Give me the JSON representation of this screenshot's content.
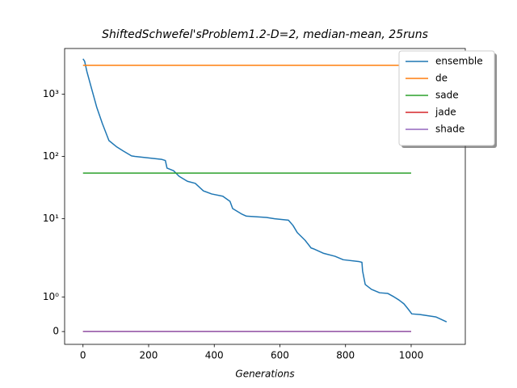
{
  "chart_data": {
    "type": "line",
    "title": "ShiftedSchwefel'sProblem1.2-D=2, median-mean, 25runs",
    "x_label": "Generations",
    "yscale": "symlog",
    "xlim": [
      -56,
      1165
    ],
    "ylim": [
      -0.37,
      5400
    ],
    "xticks": [
      0,
      200,
      400,
      600,
      800,
      1000
    ],
    "yticks": [
      0,
      {
        "value": 1,
        "label": "10⁰"
      },
      {
        "value": 10,
        "label": "10¹"
      },
      {
        "value": 100,
        "label": "10²"
      },
      {
        "value": 1000,
        "label": "10³"
      }
    ],
    "legend": "upper right",
    "series": [
      {
        "name": "ensemble",
        "color": "#1f77b4",
        "x": [
          0,
          5,
          12,
          25,
          42,
          59,
          79,
          103,
          123,
          148,
          158,
          239,
          251,
          256,
          276,
          293,
          318,
          342,
          367,
          392,
          426,
          448,
          456,
          485,
          498,
          559,
          584,
          626,
          640,
          653,
          677,
          695,
          702,
          732,
          768,
          793,
          842,
          850,
          852,
          860,
          879,
          904,
          929,
          948,
          963,
          978,
          990,
          1002,
          1027,
          1076,
          1108
        ],
        "values": [
          3690,
          3370,
          2290,
          1290,
          612,
          337,
          180,
          142,
          122,
          102,
          100,
          90,
          86,
          65,
          59,
          48,
          40,
          37,
          28,
          25,
          23,
          19,
          14.6,
          11.8,
          11,
          10.5,
          10,
          9.5,
          7.8,
          6.0,
          4.5,
          3.4,
          3.3,
          2.8,
          2.5,
          2.2,
          2.05,
          2.0,
          1.75,
          1.36,
          1.22,
          1.12,
          1.1,
          1.0,
          0.91,
          0.8,
          0.66,
          0.51,
          0.49,
          0.42,
          0.28
        ]
      },
      {
        "name": "de",
        "color": "#ff7f0e",
        "x": [
          0,
          1000
        ],
        "values": [
          2900,
          2900
        ]
      },
      {
        "name": "sade",
        "color": "#2ca02c",
        "x": [
          0,
          1000
        ],
        "values": [
          54,
          54
        ]
      },
      {
        "name": "jade",
        "color": "#d62728",
        "x": [
          0,
          1000
        ],
        "values": [
          0,
          0
        ]
      },
      {
        "name": "shade",
        "color": "#9467bd",
        "x": [
          0,
          1000
        ],
        "values": [
          0,
          0
        ]
      }
    ]
  }
}
